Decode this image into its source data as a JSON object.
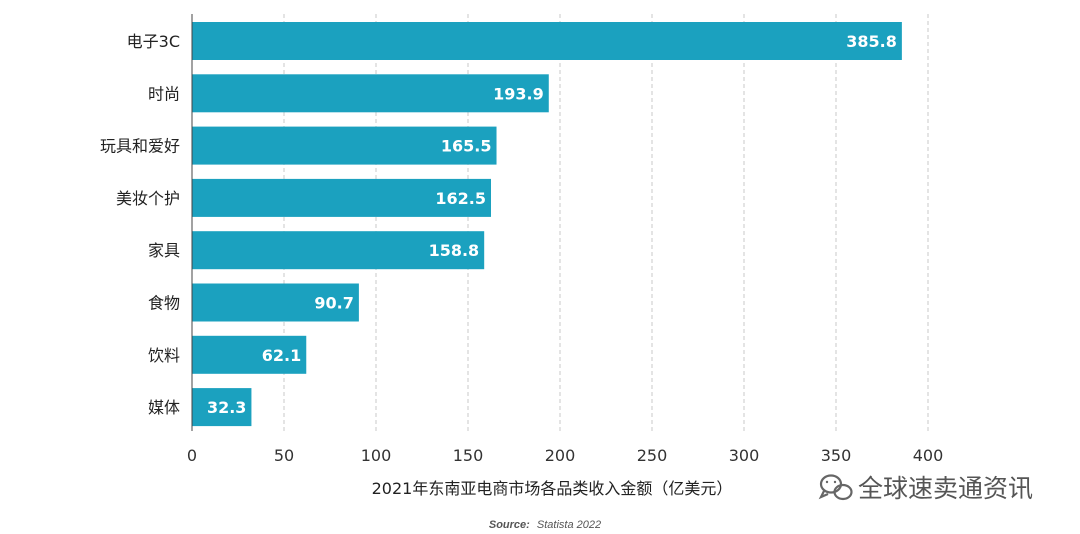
{
  "chart_data": {
    "type": "bar",
    "orientation": "horizontal",
    "categories": [
      "电子3C",
      "时尚",
      "玩具和爱好",
      "美妆个护",
      "家具",
      "食物",
      "饮料",
      "媒体"
    ],
    "values": [
      385.8,
      193.9,
      165.5,
      162.5,
      158.8,
      90.7,
      62.1,
      32.3
    ],
    "data_labels": [
      "385.8",
      "193.9",
      "165.5",
      "162.5",
      "158.8",
      "90.7",
      "62.1",
      "32.3"
    ],
    "xlabel": "2021年东南亚电商市场各品类收入金额（亿美元）",
    "xlim": [
      0,
      400
    ],
    "xticks": [
      0,
      50,
      100,
      150,
      200,
      250,
      300,
      350,
      400
    ],
    "grid": "vertical-dashed",
    "bar_color": "#1ba1bf",
    "source_label": "Source:",
    "source_text": "Statista 2022"
  },
  "watermark": {
    "text": "全球速卖通资讯",
    "icon": "wechat-icon"
  }
}
